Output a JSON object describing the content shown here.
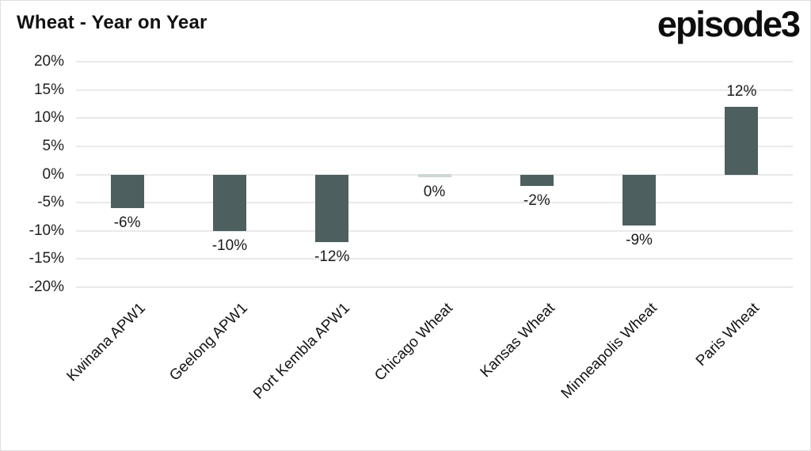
{
  "header": {
    "title": "Wheat - Year on Year",
    "logo": "episode3"
  },
  "chart_data": {
    "type": "bar",
    "title": "Wheat - Year on Year",
    "categories": [
      "Kwinana APW1",
      "Geelong APW1",
      "Port Kembla APW1",
      "Chicago Wheat",
      "Kansas Wheat",
      "Minneapolis Wheat",
      "Paris Wheat"
    ],
    "values": [
      -6,
      -10,
      -12,
      0,
      -2,
      -9,
      12
    ],
    "data_labels": [
      "-6%",
      "-10%",
      "-12%",
      "0%",
      "-2%",
      "-9%",
      "12%"
    ],
    "xlabel": "",
    "ylabel": "",
    "ylim": [
      -20,
      20
    ],
    "ytick_step": 5,
    "ytick_labels": [
      "20%",
      "15%",
      "10%",
      "5%",
      "0%",
      "-5%",
      "-10%",
      "-15%",
      "-20%"
    ],
    "ytick_values": [
      20,
      15,
      10,
      5,
      0,
      -5,
      -10,
      -15,
      -20
    ],
    "grid": true,
    "legend": "none",
    "bar_color": "#4d5f5f",
    "zero_bar_color": "#cdd5d5",
    "gridline_color": "#e9e9e9",
    "title_color": "#111111",
    "label_color": "#1a1a1a"
  }
}
